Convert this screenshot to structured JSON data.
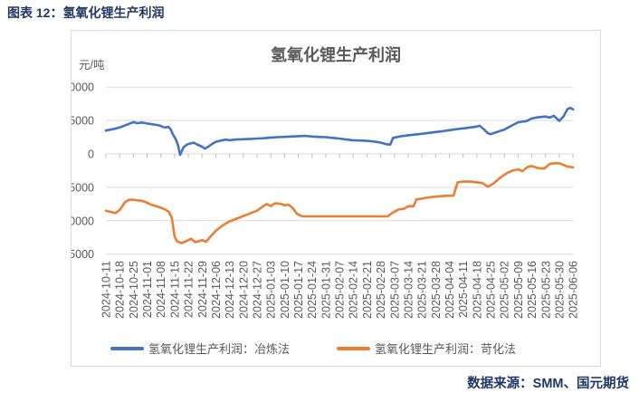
{
  "figure_caption": "图表 12：氢氧化锂生产利润",
  "source_note": "数据来源：SMM、国元期货",
  "colors": {
    "accent_navy": "#1F3864",
    "axis_text": "#595959",
    "gridline": "#D9D9D9",
    "series_smelting": "#4472C4",
    "series_causticizing": "#ED7D31"
  },
  "chart_data": {
    "type": "line",
    "title": "氢氧化锂生产利润",
    "unit_label": "元/吨",
    "ylim": [
      -15000,
      10000
    ],
    "y_ticks": [
      10000,
      5000,
      0,
      -5000,
      -10000,
      -15000
    ],
    "grid": true,
    "legend_position": "bottom",
    "x_unit": "index into x_tick_labels (weekly dates)",
    "x_tick_labels": [
      "2024-10-11",
      "2024-10-18",
      "2024-10-25",
      "2024-11-01",
      "2024-11-08",
      "2024-11-15",
      "2024-11-22",
      "2024-11-29",
      "2024-12-06",
      "2024-12-13",
      "2024-12-20",
      "2024-12-27",
      "2025-01-03",
      "2025-01-10",
      "2025-01-17",
      "2025-01-24",
      "2025-01-31",
      "2025-02-07",
      "2025-02-14",
      "2025-02-21",
      "2025-02-28",
      "2025-03-07",
      "2025-03-14",
      "2025-03-21",
      "2025-03-28",
      "2025-04-04",
      "2025-04-11",
      "2025-04-18",
      "2025-04-25",
      "2025-05-02",
      "2025-05-09",
      "2025-05-16",
      "2025-05-23",
      "2025-05-30",
      "2025-06-06"
    ],
    "series": [
      {
        "name": "氢氧化锂生产利润：冶炼法",
        "color": "#4472C4",
        "points": [
          [
            0,
            3500
          ],
          [
            0.5,
            3700
          ],
          [
            1,
            3950
          ],
          [
            1.5,
            4350
          ],
          [
            2,
            4750
          ],
          [
            2.3,
            4600
          ],
          [
            2.6,
            4700
          ],
          [
            3,
            4550
          ],
          [
            3.5,
            4400
          ],
          [
            3.9,
            4260
          ],
          [
            4.1,
            4090
          ],
          [
            4.3,
            3950
          ],
          [
            4.55,
            4050
          ],
          [
            4.7,
            3720
          ],
          [
            4.9,
            2820
          ],
          [
            5.1,
            2140
          ],
          [
            5.25,
            1300
          ],
          [
            5.4,
            -150
          ],
          [
            5.65,
            990
          ],
          [
            5.9,
            1400
          ],
          [
            6.1,
            1540
          ],
          [
            6.4,
            1680
          ],
          [
            6.7,
            1360
          ],
          [
            7,
            1090
          ],
          [
            7.2,
            780
          ],
          [
            7.45,
            1090
          ],
          [
            7.7,
            1450
          ],
          [
            8,
            1810
          ],
          [
            8.4,
            2000
          ],
          [
            8.7,
            2140
          ],
          [
            9,
            2040
          ],
          [
            9.5,
            2150
          ],
          [
            10,
            2200
          ],
          [
            10.5,
            2250
          ],
          [
            11,
            2300
          ],
          [
            11.5,
            2350
          ],
          [
            12,
            2450
          ],
          [
            12.5,
            2500
          ],
          [
            13,
            2550
          ],
          [
            13.5,
            2600
          ],
          [
            14,
            2650
          ],
          [
            14.5,
            2700
          ],
          [
            15,
            2600
          ],
          [
            15.5,
            2550
          ],
          [
            16,
            2500
          ],
          [
            16.5,
            2400
          ],
          [
            17,
            2300
          ],
          [
            17.5,
            2150
          ],
          [
            18,
            2050
          ],
          [
            18.5,
            2000
          ],
          [
            19,
            1950
          ],
          [
            19.5,
            1850
          ],
          [
            20,
            1700
          ],
          [
            20.4,
            1450
          ],
          [
            20.7,
            1400
          ],
          [
            20.9,
            2400
          ],
          [
            21.5,
            2650
          ],
          [
            22,
            2790
          ],
          [
            22.5,
            2900
          ],
          [
            23,
            3010
          ],
          [
            23.5,
            3150
          ],
          [
            24,
            3280
          ],
          [
            24.5,
            3400
          ],
          [
            25,
            3550
          ],
          [
            25.5,
            3700
          ],
          [
            26,
            3820
          ],
          [
            26.5,
            3950
          ],
          [
            27,
            4090
          ],
          [
            27.2,
            4230
          ],
          [
            27.5,
            3700
          ],
          [
            27.8,
            3100
          ],
          [
            28,
            2950
          ],
          [
            28.5,
            3300
          ],
          [
            29,
            3650
          ],
          [
            29.5,
            4200
          ],
          [
            30,
            4730
          ],
          [
            30.3,
            4820
          ],
          [
            30.6,
            4900
          ],
          [
            31,
            5310
          ],
          [
            31.5,
            5500
          ],
          [
            32,
            5600
          ],
          [
            32.3,
            5450
          ],
          [
            32.6,
            5700
          ],
          [
            33,
            4950
          ],
          [
            33.3,
            5600
          ],
          [
            33.6,
            6700
          ],
          [
            33.8,
            6900
          ],
          [
            34,
            6650
          ]
        ]
      },
      {
        "name": "氢氧化锂生产利润：苛化法",
        "color": "#ED7D31",
        "points": [
          [
            0,
            -8500
          ],
          [
            0.4,
            -8700
          ],
          [
            0.7,
            -8850
          ],
          [
            1,
            -8400
          ],
          [
            1.4,
            -7200
          ],
          [
            1.7,
            -6850
          ],
          [
            2,
            -6850
          ],
          [
            2.3,
            -6950
          ],
          [
            2.6,
            -7000
          ],
          [
            3,
            -7300
          ],
          [
            3.3,
            -7600
          ],
          [
            3.7,
            -7850
          ],
          [
            4,
            -8050
          ],
          [
            4.3,
            -8300
          ],
          [
            4.6,
            -8700
          ],
          [
            4.8,
            -9600
          ],
          [
            5,
            -12400
          ],
          [
            5.2,
            -13100
          ],
          [
            5.5,
            -13350
          ],
          [
            5.8,
            -13100
          ],
          [
            6.2,
            -12700
          ],
          [
            6.5,
            -13200
          ],
          [
            6.8,
            -13050
          ],
          [
            7,
            -12900
          ],
          [
            7.3,
            -13150
          ],
          [
            7.6,
            -12400
          ],
          [
            8,
            -11500
          ],
          [
            8.5,
            -10700
          ],
          [
            9,
            -10100
          ],
          [
            9.5,
            -9700
          ],
          [
            10,
            -9300
          ],
          [
            10.5,
            -8900
          ],
          [
            11,
            -8500
          ],
          [
            11.4,
            -7900
          ],
          [
            11.7,
            -7500
          ],
          [
            12,
            -7800
          ],
          [
            12.3,
            -7400
          ],
          [
            12.7,
            -7450
          ],
          [
            13,
            -7700
          ],
          [
            13.3,
            -7600
          ],
          [
            13.6,
            -8100
          ],
          [
            13.9,
            -8950
          ],
          [
            14.3,
            -9350
          ],
          [
            15,
            -9350
          ],
          [
            16,
            -9350
          ],
          [
            17,
            -9350
          ],
          [
            18,
            -9350
          ],
          [
            19,
            -9350
          ],
          [
            20,
            -9350
          ],
          [
            20.5,
            -9350
          ],
          [
            20.9,
            -8750
          ],
          [
            21.3,
            -8300
          ],
          [
            21.7,
            -8200
          ],
          [
            22,
            -7850
          ],
          [
            22.4,
            -7800
          ],
          [
            22.6,
            -6800
          ],
          [
            23,
            -6700
          ],
          [
            23.5,
            -6500
          ],
          [
            24,
            -6400
          ],
          [
            24.7,
            -6270
          ],
          [
            25.3,
            -6250
          ],
          [
            25.6,
            -4250
          ],
          [
            26,
            -4150
          ],
          [
            26.5,
            -4150
          ],
          [
            27,
            -4250
          ],
          [
            27.4,
            -4350
          ],
          [
            27.8,
            -4900
          ],
          [
            28.2,
            -4450
          ],
          [
            28.7,
            -3550
          ],
          [
            29.2,
            -2860
          ],
          [
            29.6,
            -2490
          ],
          [
            30,
            -2320
          ],
          [
            30.3,
            -2590
          ],
          [
            30.7,
            -1950
          ],
          [
            31,
            -1800
          ],
          [
            31.4,
            -2100
          ],
          [
            31.9,
            -2200
          ],
          [
            32.3,
            -1500
          ],
          [
            32.7,
            -1400
          ],
          [
            33,
            -1400
          ],
          [
            33.3,
            -1650
          ],
          [
            33.6,
            -1900
          ],
          [
            34,
            -2000
          ]
        ]
      }
    ]
  }
}
